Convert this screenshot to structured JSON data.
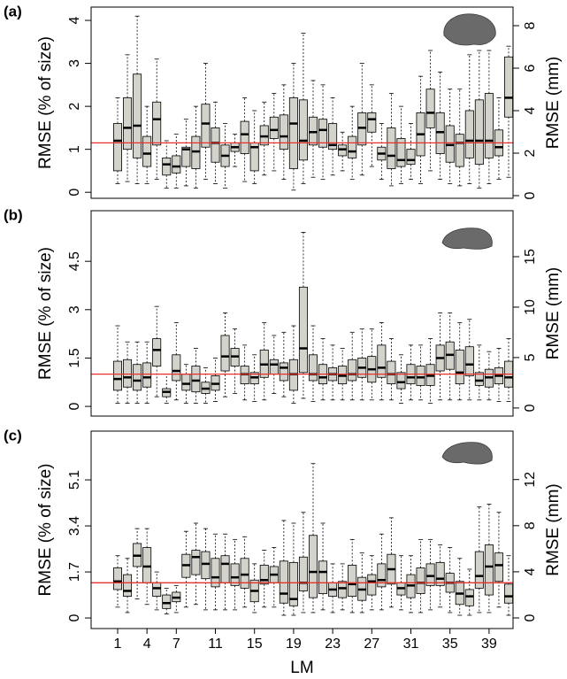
{
  "chart_data": [
    {
      "type": "boxplot",
      "panel_label": "(a)",
      "y_label": "RMSE (% of size)",
      "y2_label": "RMSE (mm)",
      "ylim": [
        -0.14,
        4.31
      ],
      "yticks": [
        0,
        1,
        2,
        3,
        4
      ],
      "y2lim": [
        -0.125,
        8.875
      ],
      "y2ticks": [
        0,
        2,
        4,
        6,
        8
      ],
      "box_color": "#d3d3cb",
      "hline": {
        "value": 1.15,
        "color": "#e8312a"
      },
      "boxes": [
        [
          0.2,
          0.5,
          1.2,
          1.6,
          2.2
        ],
        [
          0.25,
          1.0,
          1.5,
          2.2,
          3.2
        ],
        [
          0.2,
          0.8,
          1.55,
          2.75,
          4.1
        ],
        [
          0.2,
          0.6,
          0.9,
          1.3,
          2.0
        ],
        [
          0.3,
          1.1,
          1.7,
          2.1,
          3.1
        ],
        [
          0.1,
          0.4,
          0.65,
          0.8,
          1.2
        ],
        [
          0.1,
          0.45,
          0.6,
          0.85,
          1.35
        ],
        [
          0.15,
          0.6,
          1.0,
          1.05,
          1.7
        ],
        [
          0.1,
          0.55,
          0.95,
          1.3,
          2.0
        ],
        [
          0.3,
          1.05,
          1.6,
          2.05,
          3.0
        ],
        [
          0.2,
          0.7,
          1.15,
          1.5,
          2.1
        ],
        [
          0.1,
          0.6,
          0.85,
          1.1,
          1.6
        ],
        [
          0.6,
          0.95,
          1.05,
          1.15,
          1.35
        ],
        [
          0.25,
          0.9,
          1.35,
          1.65,
          2.2
        ],
        [
          0.2,
          0.5,
          1.05,
          1.15,
          1.9
        ],
        [
          0.4,
          1.1,
          1.3,
          1.55,
          2.1
        ],
        [
          0.5,
          1.25,
          1.45,
          1.75,
          2.3
        ],
        [
          0.3,
          1.0,
          1.3,
          1.8,
          2.5
        ],
        [
          0.05,
          0.55,
          1.6,
          2.2,
          3.0
        ],
        [
          0.2,
          0.75,
          1.2,
          2.15,
          3.7
        ],
        [
          0.35,
          1.1,
          1.4,
          1.75,
          2.6
        ],
        [
          0.3,
          1.05,
          1.45,
          1.7,
          2.5
        ],
        [
          0.4,
          1.0,
          1.1,
          1.6,
          2.2
        ],
        [
          0.5,
          0.85,
          1.0,
          1.1,
          1.4
        ],
        [
          0.3,
          0.8,
          0.95,
          1.3,
          2.0
        ],
        [
          0.4,
          1.1,
          1.5,
          1.85,
          3.0
        ],
        [
          0.6,
          1.4,
          1.7,
          1.85,
          2.5
        ],
        [
          0.3,
          0.75,
          0.9,
          1.05,
          1.6
        ],
        [
          0.15,
          0.55,
          0.85,
          1.5,
          2.3
        ],
        [
          0.2,
          0.6,
          0.75,
          1.25,
          2.0
        ],
        [
          0.3,
          0.65,
          0.75,
          1.0,
          1.6
        ],
        [
          0.2,
          0.85,
          1.35,
          1.85,
          2.7
        ],
        [
          0.5,
          1.5,
          1.85,
          2.4,
          3.3
        ],
        [
          0.3,
          0.9,
          1.4,
          1.85,
          2.8
        ],
        [
          0.2,
          0.7,
          1.1,
          1.55,
          2.4
        ],
        [
          0.15,
          0.6,
          1.15,
          1.35,
          2.4
        ],
        [
          0.2,
          0.8,
          1.2,
          1.9,
          3.2
        ],
        [
          0.1,
          0.65,
          1.2,
          2.15,
          3.3
        ],
        [
          0.2,
          0.8,
          1.2,
          2.3,
          3.3
        ],
        [
          0.3,
          0.85,
          1.05,
          1.45,
          2.2
        ],
        [
          0.35,
          1.75,
          2.2,
          3.15,
          3.4
        ]
      ]
    },
    {
      "type": "boxplot",
      "panel_label": "(b)",
      "y_label": "RMSE (% of size)",
      "y2_label": "RMSE (mm)",
      "ylim": [
        -0.3,
        6.07
      ],
      "yticks": [
        0,
        1.5,
        3,
        4.5
      ],
      "y2lim": [
        -0.8,
        19.56
      ],
      "y2ticks": [
        0,
        5,
        10,
        15
      ],
      "box_color": "#d3d3cb",
      "hline": {
        "value": 1.0,
        "color": "#e8312a"
      },
      "boxes": [
        [
          0.1,
          0.5,
          0.85,
          1.4,
          2.5
        ],
        [
          0.1,
          0.6,
          0.9,
          1.45,
          2.0
        ],
        [
          0.1,
          0.5,
          0.8,
          1.3,
          2.0
        ],
        [
          0.1,
          0.6,
          0.9,
          1.35,
          2.0
        ],
        [
          0.3,
          1.25,
          1.75,
          2.1,
          3.1
        ],
        [
          0.1,
          0.3,
          0.45,
          0.55,
          1.0
        ],
        [
          0.2,
          0.8,
          1.1,
          1.6,
          2.6
        ],
        [
          0.1,
          0.5,
          0.7,
          1.0,
          1.3
        ],
        [
          0.1,
          0.45,
          0.8,
          1.25,
          1.8
        ],
        [
          0.1,
          0.4,
          0.55,
          0.75,
          1.2
        ],
        [
          0.15,
          0.5,
          0.7,
          0.95,
          1.5
        ],
        [
          0.3,
          1.1,
          1.55,
          2.2,
          2.9
        ],
        [
          0.4,
          1.25,
          1.55,
          1.8,
          2.4
        ],
        [
          0.2,
          0.7,
          1.0,
          1.25,
          1.9
        ],
        [
          0.15,
          0.7,
          0.9,
          1.05,
          1.6
        ],
        [
          0.2,
          0.9,
          1.3,
          1.75,
          2.6
        ],
        [
          0.4,
          1.0,
          1.3,
          1.45,
          2.2
        ],
        [
          0.3,
          0.8,
          1.2,
          1.35,
          2.3
        ],
        [
          0.1,
          0.5,
          1.0,
          1.45,
          2.5
        ],
        [
          0.25,
          1.05,
          1.8,
          3.7,
          5.4
        ],
        [
          0.15,
          0.8,
          1.0,
          1.6,
          2.5
        ],
        [
          0.2,
          0.7,
          0.9,
          1.3,
          2.1
        ],
        [
          0.2,
          0.8,
          1.0,
          1.2,
          1.9
        ],
        [
          0.2,
          0.7,
          0.95,
          1.25,
          1.8
        ],
        [
          0.2,
          0.8,
          1.0,
          1.45,
          2.3
        ],
        [
          0.2,
          0.9,
          1.2,
          1.5,
          2.4
        ],
        [
          0.2,
          0.75,
          1.15,
          1.55,
          2.4
        ],
        [
          0.2,
          0.9,
          1.2,
          1.9,
          2.6
        ],
        [
          0.2,
          0.7,
          1.0,
          1.4,
          2.1
        ],
        [
          0.1,
          0.55,
          0.75,
          1.05,
          1.6
        ],
        [
          0.2,
          0.7,
          0.9,
          1.3,
          1.9
        ],
        [
          0.2,
          0.65,
          0.9,
          1.25,
          1.9
        ],
        [
          0.1,
          0.65,
          0.95,
          1.3,
          2.1
        ],
        [
          0.2,
          1.1,
          1.5,
          1.9,
          2.9
        ],
        [
          0.2,
          1.15,
          1.6,
          2.0,
          2.9
        ],
        [
          0.2,
          0.7,
          1.05,
          1.75,
          2.6
        ],
        [
          0.2,
          0.95,
          1.3,
          1.85,
          2.7
        ],
        [
          0.2,
          0.65,
          0.8,
          1.05,
          1.9
        ],
        [
          0.2,
          0.6,
          0.9,
          1.15,
          1.7
        ],
        [
          0.15,
          0.7,
          0.95,
          1.2,
          1.8
        ],
        [
          0.15,
          0.6,
          0.9,
          1.4,
          2.1
        ]
      ]
    },
    {
      "type": "boxplot",
      "panel_label": "(c)",
      "y_label": "RMSE (% of size)",
      "y2_label": "RMSE (mm)",
      "x_label": "LM",
      "ylim": [
        -0.39,
        6.9
      ],
      "yticks": [
        0,
        1.7,
        3.4,
        5.1
      ],
      "y2lim": [
        -0.92,
        16.2
      ],
      "y2ticks": [
        0,
        4,
        8,
        12
      ],
      "box_color": "#d3d3cb",
      "hline": {
        "value": 1.3,
        "color": "#e8312a"
      },
      "categories": [
        1,
        null,
        null,
        4,
        null,
        null,
        7,
        null,
        null,
        null,
        11,
        null,
        null,
        null,
        15,
        null,
        null,
        null,
        19,
        null,
        null,
        null,
        23,
        null,
        null,
        null,
        27,
        null,
        null,
        null,
        31,
        null,
        null,
        null,
        35,
        null,
        null,
        null,
        39,
        null,
        null
      ],
      "boxes": [
        [
          0.4,
          1.05,
          1.35,
          1.85,
          2.3
        ],
        [
          0.2,
          0.8,
          1.0,
          1.6,
          2.2
        ],
        [
          0.7,
          1.9,
          2.3,
          2.75,
          3.3
        ],
        [
          0.5,
          1.3,
          1.9,
          2.6,
          3.3
        ],
        [
          0.3,
          0.8,
          1.1,
          1.3,
          1.7
        ],
        [
          0.15,
          0.35,
          0.55,
          0.85,
          1.1
        ],
        [
          0.2,
          0.6,
          0.75,
          0.95,
          1.2
        ],
        [
          0.4,
          1.5,
          1.95,
          2.35,
          3.2
        ],
        [
          0.5,
          1.6,
          2.25,
          2.5,
          3.5
        ],
        [
          0.3,
          1.45,
          2.0,
          2.45,
          3.3
        ],
        [
          0.3,
          1.15,
          1.5,
          2.2,
          3.1
        ],
        [
          0.3,
          1.3,
          2.0,
          2.3,
          3.1
        ],
        [
          0.3,
          1.2,
          1.5,
          2.0,
          2.9
        ],
        [
          0.4,
          1.1,
          1.6,
          2.2,
          3.0
        ],
        [
          0.2,
          0.6,
          1.0,
          1.4,
          2.0
        ],
        [
          0.4,
          1.25,
          1.4,
          1.95,
          2.5
        ],
        [
          0.4,
          1.3,
          1.6,
          1.9,
          2.6
        ],
        [
          0.1,
          0.55,
          0.9,
          2.1,
          3.6
        ],
        [
          0.1,
          0.45,
          0.7,
          2.05,
          3.5
        ],
        [
          0.2,
          1.0,
          1.3,
          2.25,
          3.9
        ],
        [
          0.2,
          0.75,
          1.7,
          3.05,
          5.7
        ],
        [
          0.3,
          0.9,
          1.7,
          2.1,
          3.5
        ],
        [
          0.2,
          0.8,
          1.05,
          1.3,
          2.0
        ],
        [
          0.3,
          0.75,
          1.1,
          1.35,
          2.0
        ],
        [
          0.2,
          0.8,
          1.25,
          1.95,
          2.9
        ],
        [
          0.2,
          0.65,
          1.05,
          1.5,
          2.4
        ],
        [
          0.3,
          0.85,
          1.35,
          1.6,
          2.3
        ],
        [
          0.3,
          1.15,
          1.4,
          2.0,
          3.1
        ],
        [
          0.4,
          1.25,
          1.8,
          2.35,
          3.7
        ],
        [
          0.3,
          0.85,
          1.1,
          1.3,
          2.3
        ],
        [
          0.2,
          0.75,
          1.2,
          1.6,
          2.3
        ],
        [
          0.2,
          0.9,
          1.3,
          1.85,
          2.9
        ],
        [
          0.3,
          1.2,
          1.55,
          2.0,
          2.9
        ],
        [
          0.4,
          1.2,
          1.45,
          2.05,
          2.7
        ],
        [
          0.2,
          0.95,
          1.3,
          1.65,
          2.6
        ],
        [
          0.1,
          0.5,
          0.9,
          1.35,
          2.2
        ],
        [
          0.1,
          0.45,
          0.8,
          1.05,
          1.8
        ],
        [
          0.2,
          1.1,
          1.55,
          2.45,
          4.1
        ],
        [
          0.2,
          0.85,
          1.9,
          2.7,
          4.2
        ],
        [
          0.4,
          1.35,
          1.95,
          2.4,
          3.9
        ],
        [
          0.1,
          0.55,
          0.8,
          1.25,
          2.3
        ]
      ]
    }
  ]
}
